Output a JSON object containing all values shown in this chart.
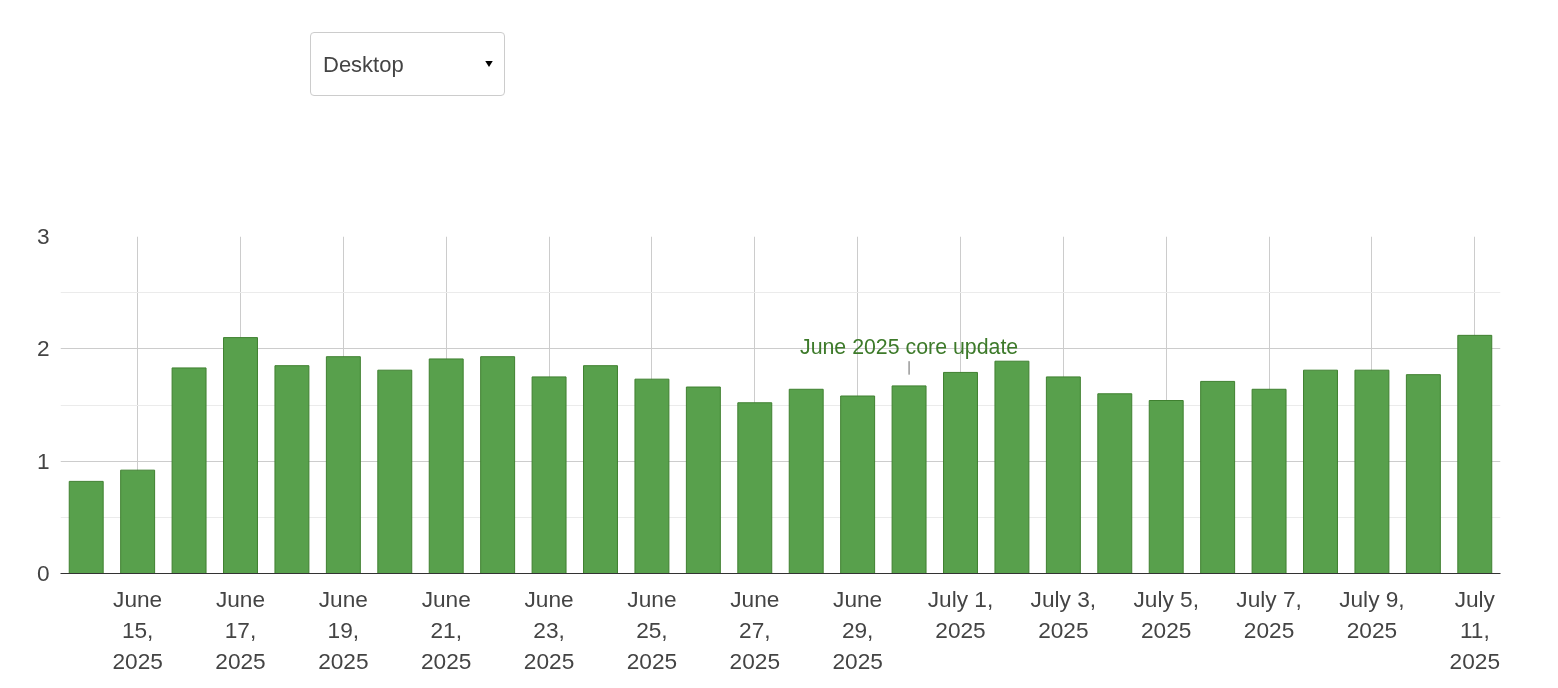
{
  "chart_data": {
    "type": "bar",
    "x": [
      "2025-06-14",
      "2025-06-15",
      "2025-06-16",
      "2025-06-17",
      "2025-06-18",
      "2025-06-19",
      "2025-06-20",
      "2025-06-21",
      "2025-06-22",
      "2025-06-23",
      "2025-06-24",
      "2025-06-25",
      "2025-06-26",
      "2025-06-27",
      "2025-06-28",
      "2025-06-29",
      "2025-06-30",
      "2025-07-01",
      "2025-07-02",
      "2025-07-03",
      "2025-07-04",
      "2025-07-05",
      "2025-07-06",
      "2025-07-07",
      "2025-07-08",
      "2025-07-09",
      "2025-07-10",
      "2025-07-11"
    ],
    "values": [
      0.82,
      0.92,
      1.83,
      2.1,
      1.85,
      1.93,
      1.81,
      1.91,
      1.93,
      1.75,
      1.85,
      1.73,
      1.66,
      1.52,
      1.64,
      1.58,
      1.67,
      1.79,
      1.89,
      1.75,
      1.6,
      1.54,
      1.71,
      1.64,
      1.81,
      1.81,
      1.77,
      2.12
    ],
    "color": "#58a04c",
    "xlim": [
      "2025-06-13T12:00",
      "2025-07-11T12:00"
    ],
    "xticks": [
      {
        "value": "2025-06-15",
        "label": "June 15, 2025"
      },
      {
        "value": "2025-06-17",
        "label": "June 17, 2025"
      },
      {
        "value": "2025-06-19",
        "label": "June 19, 2025"
      },
      {
        "value": "2025-06-21",
        "label": "June 21, 2025"
      },
      {
        "value": "2025-06-23",
        "label": "June 23, 2025"
      },
      {
        "value": "2025-06-25",
        "label": "June 25, 2025"
      },
      {
        "value": "2025-06-27",
        "label": "June 27, 2025"
      },
      {
        "value": "2025-06-29",
        "label": "June 29, 2025"
      },
      {
        "value": "2025-07-01",
        "label": "July 1, 2025"
      },
      {
        "value": "2025-07-03",
        "label": "July 3, 2025"
      },
      {
        "value": "2025-07-05",
        "label": "July 5, 2025"
      },
      {
        "value": "2025-07-07",
        "label": "July 7, 2025"
      },
      {
        "value": "2025-07-09",
        "label": "July 9, 2025"
      },
      {
        "value": "2025-07-11",
        "label": "July 11, 2025"
      }
    ],
    "ylim": [
      0,
      3
    ],
    "yticks": [
      0,
      {
        "value": 0.5,
        "label": null
      },
      1,
      {
        "value": 1.5,
        "label": null
      },
      2,
      {
        "value": 2.5,
        "label": null
      },
      3
    ],
    "grid": true,
    "annotations": [
      "Desktop",
      {
        "text": "June 2025 core update",
        "x": "2025-06-30",
        "y": 1.67
      }
    ]
  }
}
